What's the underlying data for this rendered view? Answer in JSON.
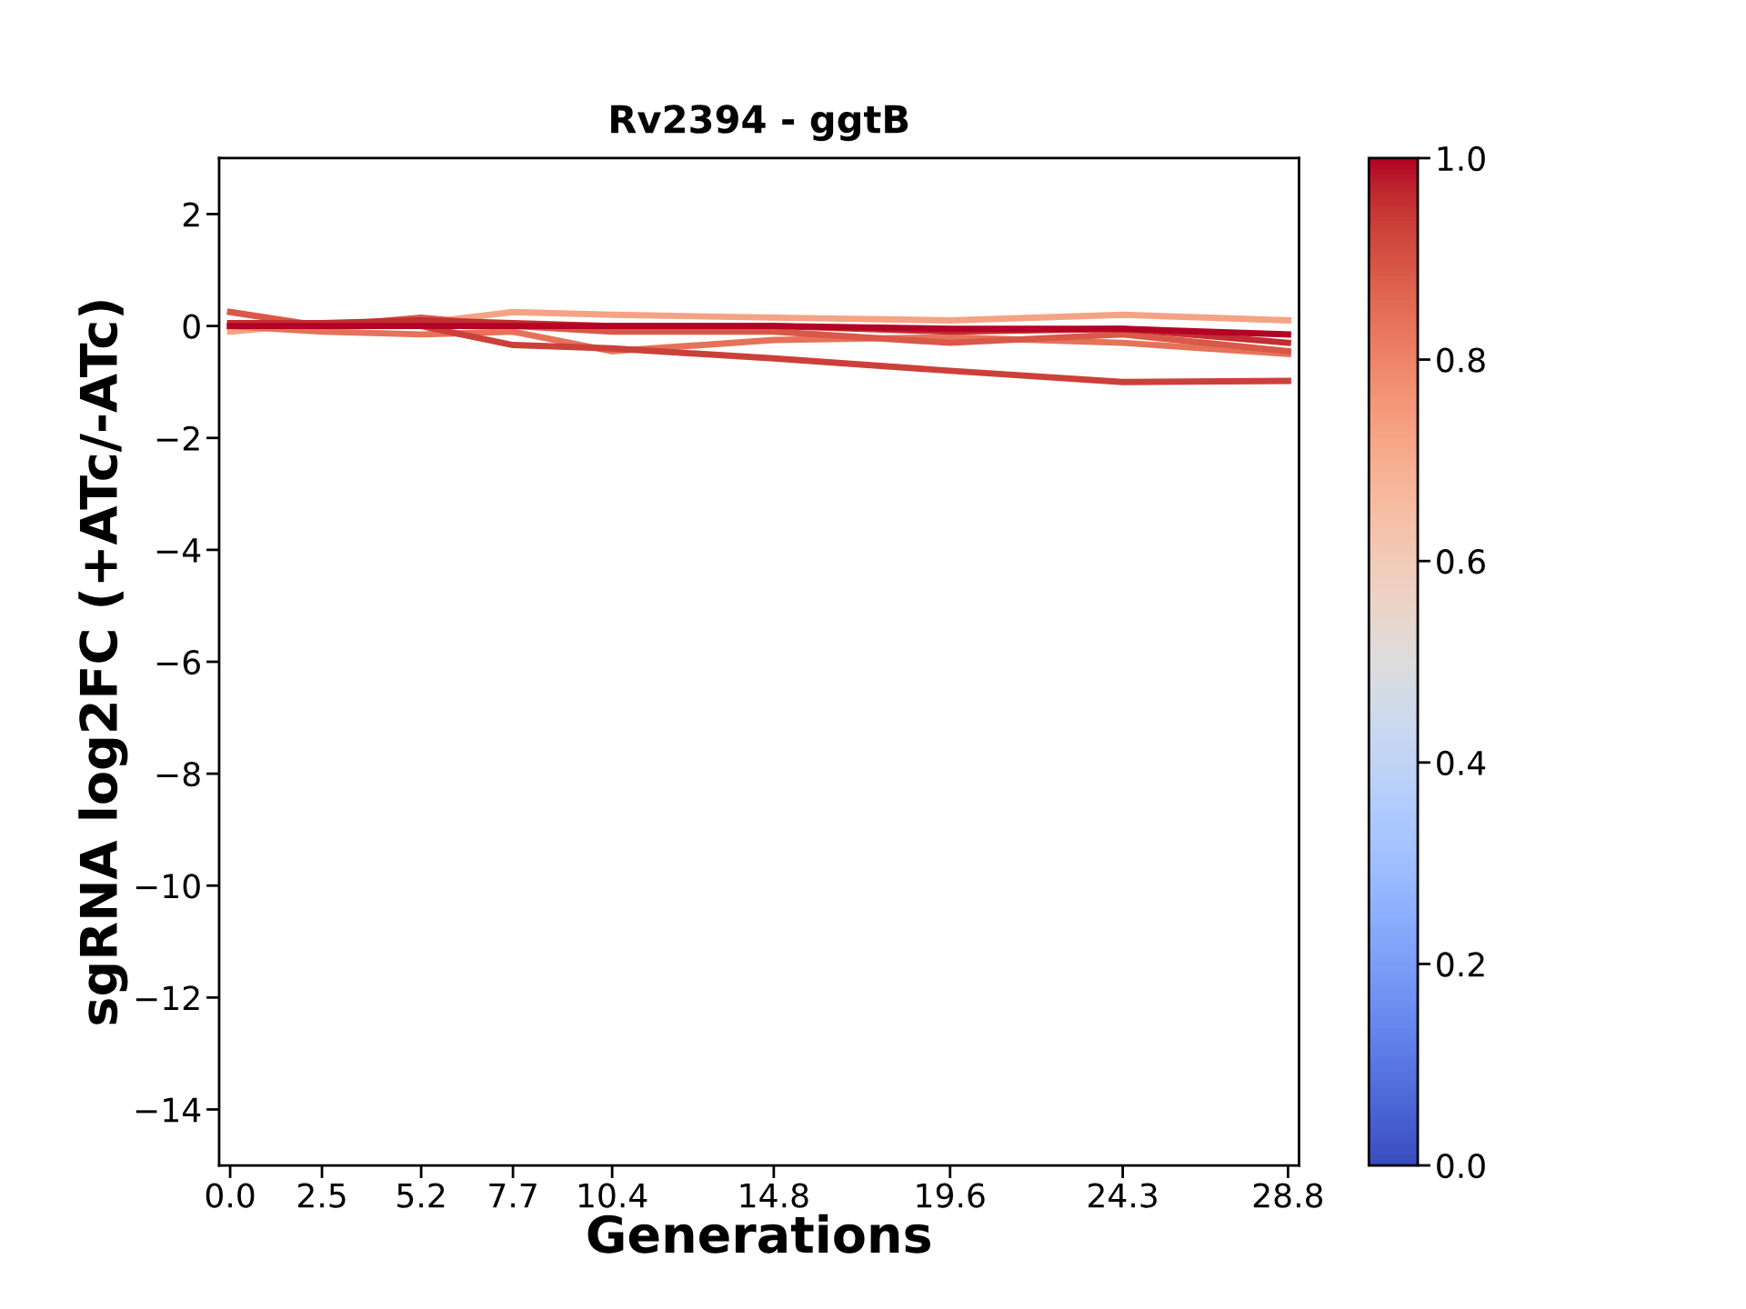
{
  "chart_data": {
    "type": "line",
    "title": "Rv2394 - ggtB",
    "xlabel": "Generations",
    "ylabel": "sgRNA log2FC (+ATc/-ATc)",
    "x": [
      0.0,
      2.5,
      5.2,
      7.7,
      10.4,
      14.8,
      19.6,
      24.3,
      28.8
    ],
    "series": [
      {
        "color": "#f4a384",
        "values": [
          -0.1,
          0.05,
          0.05,
          0.25,
          0.2,
          0.15,
          0.1,
          0.2,
          0.1
        ]
      },
      {
        "color": "#e67259",
        "values": [
          0.0,
          -0.1,
          -0.15,
          -0.1,
          -0.45,
          -0.25,
          -0.2,
          -0.3,
          -0.5
        ]
      },
      {
        "color": "#d95847",
        "values": [
          0.25,
          0.0,
          0.15,
          0.0,
          -0.1,
          -0.1,
          -0.3,
          -0.15,
          -0.45
        ]
      },
      {
        "color": "#cc403a",
        "values": [
          0.0,
          0.0,
          0.0,
          -0.34,
          -0.4,
          -0.58,
          -0.8,
          -1.0,
          -0.98
        ]
      },
      {
        "color": "#c32e31",
        "values": [
          0.05,
          0.05,
          0.1,
          0.05,
          0.0,
          0.0,
          -0.1,
          -0.05,
          -0.3
        ]
      },
      {
        "color": "#b40426",
        "values": [
          0.0,
          0.0,
          0.0,
          0.0,
          0.0,
          0.0,
          -0.05,
          -0.05,
          -0.15
        ]
      }
    ],
    "xlim": [
      -0.3,
      29.1
    ],
    "ylim": [
      -15,
      3
    ],
    "xticks": [
      {
        "value": 0.0,
        "label": "0.0"
      },
      2.5,
      5.2,
      7.7,
      10.4,
      14.8,
      19.6,
      24.3,
      28.8
    ],
    "yticks": [
      {
        "value": -14,
        "label": "−14"
      },
      {
        "value": -12,
        "label": "−12"
      },
      {
        "value": -10,
        "label": "−10"
      },
      {
        "value": -8,
        "label": "−8"
      },
      {
        "value": -6,
        "label": "−6"
      },
      {
        "value": -4,
        "label": "−4"
      },
      {
        "value": -2,
        "label": "−2"
      },
      0,
      2
    ],
    "clim": [
      0,
      1
    ],
    "cticks": [
      {
        "value": 0,
        "label": "0.0"
      },
      0.2,
      0.4,
      0.6,
      0.8,
      {
        "value": 1,
        "label": "1.0"
      }
    ],
    "grid": false,
    "legend": false,
    "marker": "none",
    "line_style": "solid"
  }
}
